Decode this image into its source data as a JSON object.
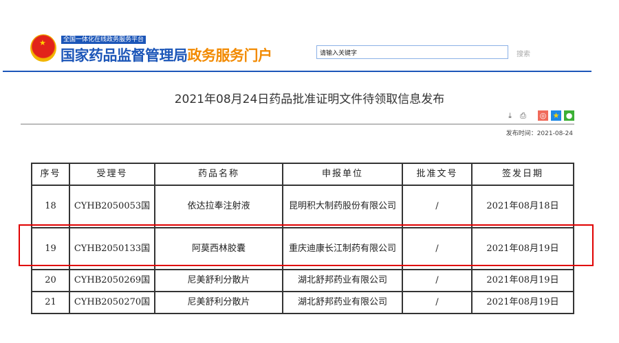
{
  "header": {
    "tagline": "全国一体化在线政务服务平台",
    "brand_main": "国家药品监督管理局",
    "brand_accent": "政务服务门户",
    "search_placeholder": "请输入关键字",
    "search_button": "搜索"
  },
  "article": {
    "title": "2021年08月24日药品批准证明文件待领取信息发布",
    "publish_time": "发布时间：2021-08-24",
    "icons": [
      "download-icon",
      "print-icon",
      "weibo-icon",
      "star-icon",
      "wechat-icon"
    ]
  },
  "table": {
    "headers": [
      "序号",
      "受理号",
      "药品名称",
      "申报单位",
      "批准文号",
      "签发日期"
    ],
    "rows": [
      [
        "18",
        "CYHB2050053国",
        "依达拉奉注射液",
        "昆明积大制药股份有限公司",
        "/",
        "2021年08月18日"
      ],
      [
        "19",
        "CYHB2050133国",
        "阿莫西林胶囊",
        "重庆迪康长江制药有限公司",
        "/",
        "2021年08月19日"
      ],
      [
        "20",
        "CYHB2050269国",
        "尼美舒利分散片",
        "湖北舒邦药业有限公司",
        "/",
        "2021年08月19日"
      ],
      [
        "21",
        "CYHB2050270国",
        "尼美舒利分散片",
        "湖北舒邦药业有限公司",
        "/",
        "2021年08月19日"
      ]
    ]
  },
  "highlight_color": "#e00000",
  "brand_color": "#1c56b8"
}
